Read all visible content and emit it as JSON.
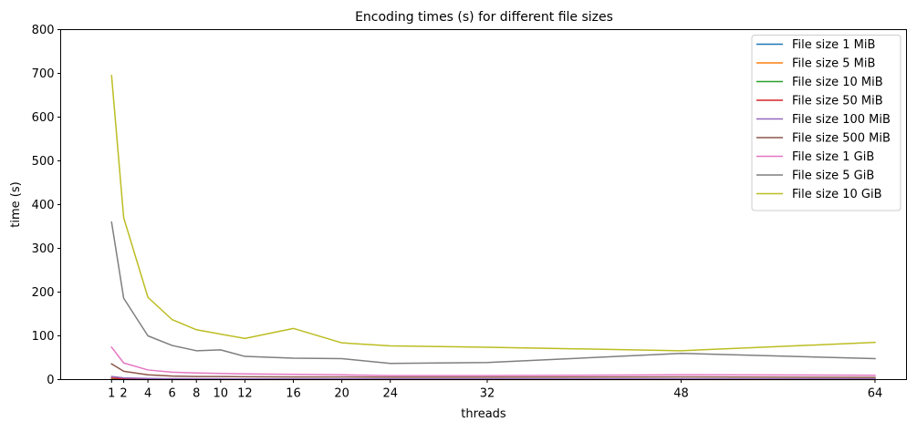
{
  "chart_data": {
    "type": "line",
    "title": "Encoding times (s) for different file sizes",
    "xlabel": "threads",
    "ylabel": "time (s)",
    "x": [
      1,
      2,
      4,
      6,
      8,
      10,
      12,
      16,
      20,
      24,
      32,
      48,
      64
    ],
    "xticks": [
      1,
      2,
      4,
      6,
      8,
      10,
      12,
      16,
      20,
      24,
      32,
      48,
      64
    ],
    "xlim": [
      -3.2,
      66.6
    ],
    "ylim": [
      0,
      800
    ],
    "yticks": [
      0,
      100,
      200,
      300,
      400,
      500,
      600,
      700,
      800
    ],
    "grid": false,
    "legend_position": "top-right",
    "series": [
      {
        "name": "File size 1 MiB",
        "color": "#1f77b4",
        "values": [
          0.2,
          0.2,
          0.2,
          0.2,
          0.2,
          0.2,
          0.2,
          0.2,
          0.2,
          0.2,
          0.2,
          0.2,
          0.2
        ]
      },
      {
        "name": "File size 5 MiB",
        "color": "#ff7f0e",
        "values": [
          0.5,
          0.4,
          0.3,
          0.3,
          0.3,
          0.3,
          0.3,
          0.3,
          0.3,
          0.3,
          0.3,
          0.3,
          0.3
        ]
      },
      {
        "name": "File size 10 MiB",
        "color": "#2ca02c",
        "values": [
          0.8,
          0.6,
          0.5,
          0.4,
          0.4,
          0.4,
          0.4,
          0.4,
          0.4,
          0.4,
          0.4,
          0.4,
          0.4
        ]
      },
      {
        "name": "File size 50 MiB",
        "color": "#d62728",
        "values": [
          3.5,
          2,
          1.2,
          1,
          0.9,
          0.9,
          0.8,
          0.8,
          0.8,
          0.8,
          0.8,
          0.8,
          0.8
        ]
      },
      {
        "name": "File size 100 MiB",
        "color": "#9467bd",
        "values": [
          7,
          4,
          2.5,
          2,
          1.8,
          1.7,
          1.6,
          1.6,
          1.6,
          1.5,
          1.5,
          1.5,
          1.5
        ]
      },
      {
        "name": "File size 500 MiB",
        "color": "#8c564b",
        "values": [
          36,
          19,
          11,
          8,
          7,
          7,
          6.5,
          6,
          6,
          5.5,
          5.5,
          6,
          5
        ]
      },
      {
        "name": "File size 1 GiB",
        "color": "#e377c2",
        "values": [
          74,
          38,
          22,
          17,
          15,
          14,
          13,
          12,
          11,
          9,
          9,
          11,
          10
        ]
      },
      {
        "name": "File size 5 GiB",
        "color": "#7f7f7f",
        "values": [
          360,
          186,
          100,
          78,
          66,
          68,
          53,
          49,
          48,
          37,
          39,
          60,
          48
        ]
      },
      {
        "name": "File size 10 GiB",
        "color": "#bcbd22",
        "values": [
          695,
          370,
          188,
          137,
          114,
          104,
          94,
          117,
          84,
          77,
          74,
          66,
          85
        ]
      }
    ]
  }
}
